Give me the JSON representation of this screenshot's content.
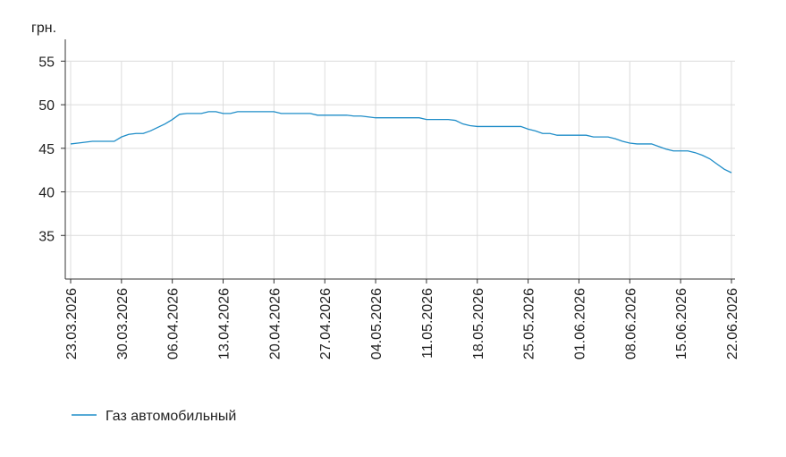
{
  "chart_data": {
    "type": "line",
    "y_label": "грн.",
    "x": [
      "23.03.2026",
      "24.03.2026",
      "25.03.2026",
      "26.03.2026",
      "27.03.2026",
      "28.03.2026",
      "29.03.2026",
      "30.03.2026",
      "31.03.2026",
      "01.04.2026",
      "02.04.2026",
      "03.04.2026",
      "04.04.2026",
      "05.04.2026",
      "06.04.2026",
      "07.04.2026",
      "08.04.2026",
      "09.04.2026",
      "10.04.2026",
      "11.04.2026",
      "12.04.2026",
      "13.04.2026",
      "14.04.2026",
      "15.04.2026",
      "16.04.2026",
      "17.04.2026",
      "18.04.2026",
      "19.04.2026",
      "20.04.2026",
      "21.04.2026",
      "22.04.2026",
      "23.04.2026",
      "24.04.2026",
      "25.04.2026",
      "26.04.2026",
      "27.04.2026",
      "28.04.2026",
      "29.04.2026",
      "30.04.2026",
      "01.05.2026",
      "02.05.2026",
      "03.05.2026",
      "04.05.2026",
      "05.05.2026",
      "06.05.2026",
      "07.05.2026",
      "08.05.2026",
      "09.05.2026",
      "10.05.2026",
      "11.05.2026",
      "12.05.2026",
      "13.05.2026",
      "14.05.2026",
      "15.05.2026",
      "16.05.2026",
      "17.05.2026",
      "18.05.2026",
      "19.05.2026",
      "20.05.2026",
      "21.05.2026",
      "22.05.2026",
      "23.05.2026",
      "24.05.2026",
      "25.05.2026",
      "26.05.2026",
      "27.05.2026",
      "28.05.2026",
      "29.05.2026",
      "30.05.2026",
      "31.05.2026",
      "01.06.2026",
      "02.06.2026",
      "03.06.2026",
      "04.06.2026",
      "05.06.2026",
      "06.06.2026",
      "07.06.2026",
      "08.06.2026",
      "09.06.2026",
      "10.06.2026",
      "11.06.2026",
      "12.06.2026",
      "13.06.2026",
      "14.06.2026",
      "15.06.2026",
      "16.06.2026",
      "17.06.2026",
      "18.06.2026",
      "19.06.2026",
      "20.06.2026",
      "21.06.2026",
      "22.06.2026"
    ],
    "series": [
      {
        "name": "Газ автомобильный",
        "color": "#1f8dc8",
        "values": [
          45.5,
          45.6,
          45.7,
          45.8,
          45.8,
          45.8,
          45.8,
          46.3,
          46.6,
          46.7,
          46.7,
          47.0,
          47.4,
          47.8,
          48.3,
          48.9,
          49.0,
          49.0,
          49.0,
          49.2,
          49.2,
          49.0,
          49.0,
          49.2,
          49.2,
          49.2,
          49.2,
          49.2,
          49.2,
          49.0,
          49.0,
          49.0,
          49.0,
          49.0,
          48.8,
          48.8,
          48.8,
          48.8,
          48.8,
          48.7,
          48.7,
          48.6,
          48.5,
          48.5,
          48.5,
          48.5,
          48.5,
          48.5,
          48.5,
          48.3,
          48.3,
          48.3,
          48.3,
          48.2,
          47.8,
          47.6,
          47.5,
          47.5,
          47.5,
          47.5,
          47.5,
          47.5,
          47.5,
          47.2,
          47.0,
          46.7,
          46.7,
          46.5,
          46.5,
          46.5,
          46.5,
          46.5,
          46.3,
          46.3,
          46.3,
          46.1,
          45.8,
          45.6,
          45.5,
          45.5,
          45.5,
          45.2,
          44.9,
          44.7,
          44.7,
          44.7,
          44.5,
          44.2,
          43.8,
          43.2,
          42.6,
          42.2
        ]
      }
    ],
    "xticks": [
      "23.03.2026",
      "30.03.2026",
      "06.04.2026",
      "13.04.2026",
      "20.04.2026",
      "27.04.2026",
      "04.05.2026",
      "11.05.2026",
      "18.05.2026",
      "25.05.2026",
      "01.06.2026",
      "08.06.2026",
      "15.06.2026",
      "22.06.2026"
    ],
    "ylim": [
      30,
      57.5
    ],
    "yticks": [
      35,
      40,
      45,
      50,
      55
    ],
    "grid": true,
    "legend": "bottom-left"
  }
}
